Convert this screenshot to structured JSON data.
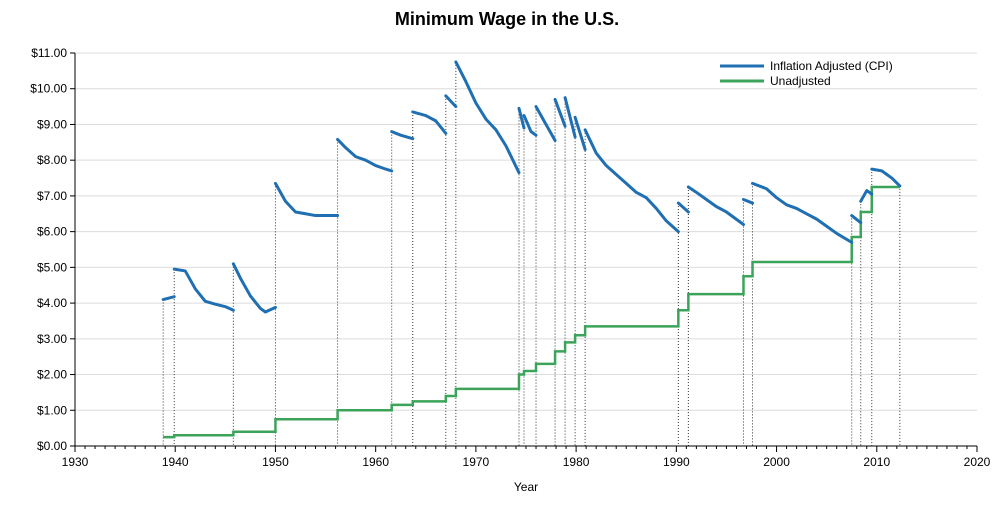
{
  "chart_data": {
    "type": "line",
    "title": "Minimum Wage in the U.S.",
    "xlabel": "Year",
    "ylabel": "",
    "xlim": [
      1930,
      2020
    ],
    "ylim": [
      0,
      11
    ],
    "x_ticks": [
      "1930",
      "1940",
      "1950",
      "1960",
      "1970",
      "1980",
      "1990",
      "2000",
      "2010",
      "2020"
    ],
    "y_ticks": [
      "$0.00",
      "$1.00",
      "$2.00",
      "$3.00",
      "$4.00",
      "$5.00",
      "$6.00",
      "$7.00",
      "$8.00",
      "$9.00",
      "$10.00",
      "$11.00"
    ],
    "grid": true,
    "legend_position": "top-right",
    "series": [
      {
        "name": "Inflation Adjusted (CPI)",
        "color": "#1f6fb2",
        "segments": [
          [
            [
              1938.8,
              4.1
            ],
            [
              1939.9,
              4.18
            ]
          ],
          [
            [
              1939.9,
              4.95
            ],
            [
              1941.0,
              4.9
            ],
            [
              1942.0,
              4.4
            ],
            [
              1943.0,
              4.05
            ],
            [
              1944.0,
              3.97
            ],
            [
              1945.0,
              3.9
            ],
            [
              1945.8,
              3.8
            ]
          ],
          [
            [
              1945.8,
              5.1
            ],
            [
              1946.5,
              4.7
            ],
            [
              1947.5,
              4.2
            ],
            [
              1948.5,
              3.85
            ],
            [
              1949.0,
              3.75
            ],
            [
              1950.0,
              3.88
            ]
          ],
          [
            [
              1950.0,
              7.35
            ],
            [
              1951.0,
              6.85
            ],
            [
              1952.0,
              6.55
            ],
            [
              1953.0,
              6.5
            ],
            [
              1954.0,
              6.45
            ],
            [
              1955.0,
              6.45
            ],
            [
              1956.2,
              6.45
            ]
          ],
          [
            [
              1956.2,
              8.58
            ],
            [
              1957.0,
              8.35
            ],
            [
              1958.0,
              8.1
            ],
            [
              1959.0,
              8.0
            ],
            [
              1960.0,
              7.85
            ],
            [
              1961.0,
              7.75
            ],
            [
              1961.6,
              7.7
            ]
          ],
          [
            [
              1961.6,
              8.8
            ],
            [
              1962.5,
              8.7
            ],
            [
              1963.7,
              8.6
            ]
          ],
          [
            [
              1963.7,
              9.35
            ],
            [
              1965.0,
              9.25
            ],
            [
              1966.0,
              9.1
            ],
            [
              1967.0,
              8.75
            ]
          ],
          [
            [
              1967.0,
              9.8
            ],
            [
              1968.0,
              9.5
            ]
          ],
          [
            [
              1968.0,
              10.75
            ],
            [
              1969.0,
              10.2
            ],
            [
              1970.0,
              9.6
            ],
            [
              1971.0,
              9.15
            ],
            [
              1972.0,
              8.85
            ],
            [
              1973.0,
              8.4
            ],
            [
              1974.3,
              7.65
            ]
          ],
          [
            [
              1974.3,
              9.45
            ],
            [
              1974.8,
              8.9
            ]
          ],
          [
            [
              1974.8,
              9.25
            ],
            [
              1975.5,
              8.8
            ],
            [
              1976.0,
              8.7
            ]
          ],
          [
            [
              1976.0,
              9.5
            ],
            [
              1977.0,
              9.0
            ],
            [
              1977.9,
              8.55
            ]
          ],
          [
            [
              1977.9,
              9.7
            ],
            [
              1978.9,
              8.95
            ]
          ],
          [
            [
              1978.9,
              9.75
            ],
            [
              1979.9,
              8.65
            ]
          ],
          [
            [
              1979.9,
              9.2
            ],
            [
              1980.9,
              8.3
            ]
          ],
          [
            [
              1980.9,
              8.85
            ],
            [
              1982.0,
              8.2
            ],
            [
              1983.0,
              7.85
            ],
            [
              1984.0,
              7.6
            ],
            [
              1985.0,
              7.35
            ],
            [
              1986.0,
              7.1
            ],
            [
              1987.0,
              6.95
            ],
            [
              1988.0,
              6.65
            ],
            [
              1989.0,
              6.3
            ],
            [
              1990.2,
              6.0
            ]
          ],
          [
            [
              1990.2,
              6.8
            ],
            [
              1991.2,
              6.55
            ]
          ],
          [
            [
              1991.2,
              7.25
            ],
            [
              1992.0,
              7.1
            ],
            [
              1993.0,
              6.9
            ],
            [
              1994.0,
              6.7
            ],
            [
              1995.0,
              6.55
            ],
            [
              1996.7,
              6.2
            ]
          ],
          [
            [
              1996.7,
              6.9
            ],
            [
              1997.6,
              6.8
            ]
          ],
          [
            [
              1997.6,
              7.35
            ],
            [
              1999.0,
              7.2
            ],
            [
              2000.0,
              6.95
            ],
            [
              2001.0,
              6.75
            ],
            [
              2002.0,
              6.65
            ],
            [
              2003.0,
              6.5
            ],
            [
              2004.0,
              6.35
            ],
            [
              2005.0,
              6.15
            ],
            [
              2006.0,
              5.95
            ],
            [
              2007.5,
              5.7
            ]
          ],
          [
            [
              2007.5,
              6.45
            ],
            [
              2008.4,
              6.25
            ]
          ],
          [
            [
              2008.4,
              6.85
            ],
            [
              2009.0,
              7.15
            ],
            [
              2009.5,
              7.05
            ]
          ],
          [
            [
              2009.5,
              7.75
            ],
            [
              2010.5,
              7.7
            ],
            [
              2011.5,
              7.5
            ],
            [
              2012.3,
              7.28
            ]
          ]
        ]
      },
      {
        "name": "Unadjusted",
        "color": "#3ca35a",
        "steps": [
          [
            1938.8,
            0.25
          ],
          [
            1939.9,
            0.3
          ],
          [
            1945.8,
            0.4
          ],
          [
            1950.0,
            0.75
          ],
          [
            1956.2,
            1.0
          ],
          [
            1961.6,
            1.15
          ],
          [
            1963.7,
            1.25
          ],
          [
            1967.0,
            1.4
          ],
          [
            1968.0,
            1.6
          ],
          [
            1974.3,
            2.0
          ],
          [
            1974.8,
            2.1
          ],
          [
            1976.0,
            2.3
          ],
          [
            1977.9,
            2.65
          ],
          [
            1978.9,
            2.9
          ],
          [
            1979.9,
            3.1
          ],
          [
            1980.9,
            3.35
          ],
          [
            1990.2,
            3.8
          ],
          [
            1991.2,
            4.25
          ],
          [
            1996.7,
            4.75
          ],
          [
            1997.6,
            5.15
          ],
          [
            2007.5,
            5.85
          ],
          [
            2008.4,
            6.55
          ],
          [
            2009.5,
            7.25
          ]
        ],
        "end_x": 2012.3
      }
    ],
    "change_dates": [
      1938.8,
      1939.9,
      1945.8,
      1950.0,
      1956.2,
      1961.6,
      1963.7,
      1967.0,
      1968.0,
      1974.3,
      1974.8,
      1976.0,
      1977.9,
      1978.9,
      1979.9,
      1980.9,
      1990.2,
      1991.2,
      1996.7,
      1997.6,
      2007.5,
      2008.4,
      2009.5,
      2012.3
    ]
  }
}
